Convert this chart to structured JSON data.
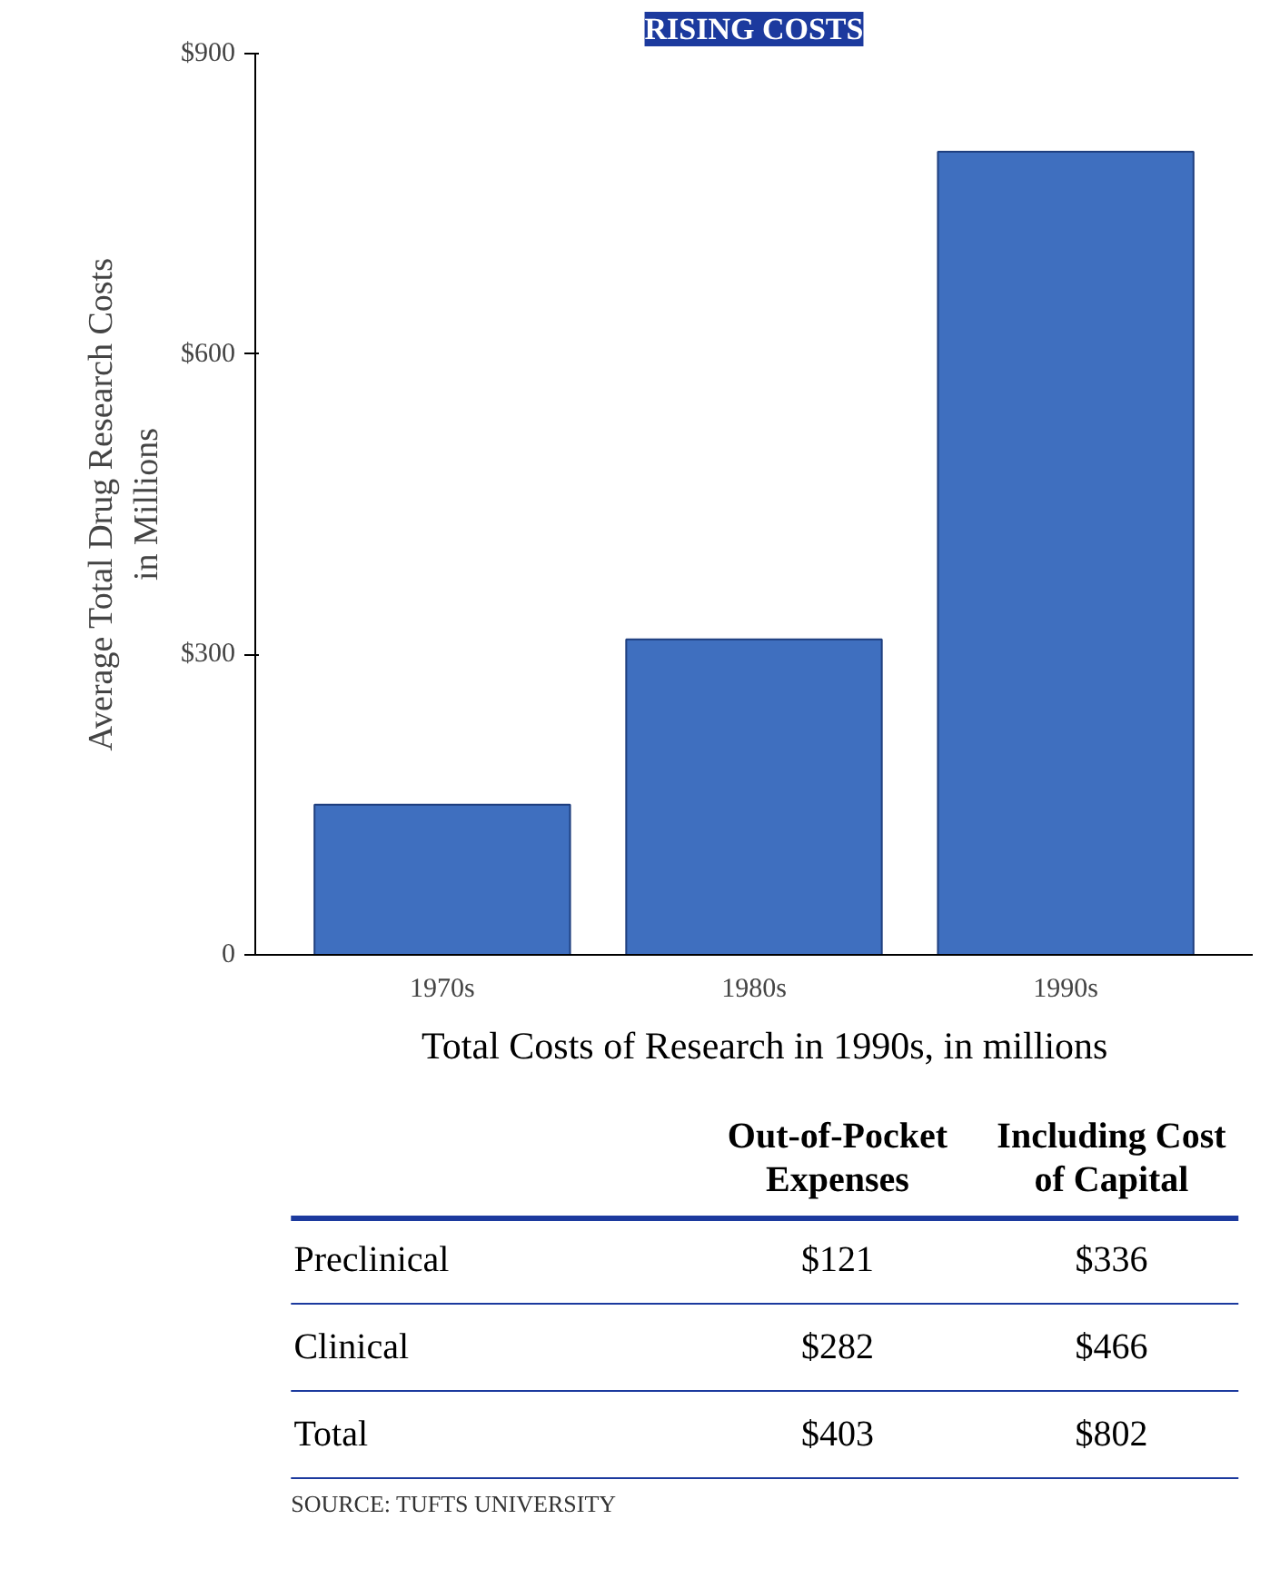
{
  "chart_data": [
    {
      "type": "bar",
      "title": "RISING COSTS",
      "ylabel": "Average Total Drug Research Costs\nin Millions",
      "categories": [
        "1970s",
        "1980s",
        "1990s"
      ],
      "values": [
        150,
        315,
        802
      ],
      "color": "#3f6fbf",
      "ylim": [
        0,
        900
      ],
      "yticks": [
        0,
        {
          "value": 300,
          "label": "$300"
        },
        {
          "value": 600,
          "label": "$600"
        },
        {
          "value": 900,
          "label": "$900"
        }
      ],
      "grid": false
    },
    {
      "type": "other",
      "title": "Total Costs of Research in 1990s, in millions",
      "categories": [
        "Preclinical",
        "Clinical",
        "Total"
      ],
      "series": [
        {
          "name": "Out-of-Pocket\nExpenses",
          "values": [
            121,
            282,
            403
          ],
          "value_labels": [
            "$121",
            "$282",
            "$403"
          ]
        },
        {
          "name": "Including Cost\nof Capital",
          "values": [
            336,
            466,
            802
          ],
          "value_labels": [
            "$336",
            "$466",
            "$802"
          ]
        }
      ],
      "annotations": [
        "SOURCE: TUFTS UNIVERSITY"
      ]
    }
  ]
}
